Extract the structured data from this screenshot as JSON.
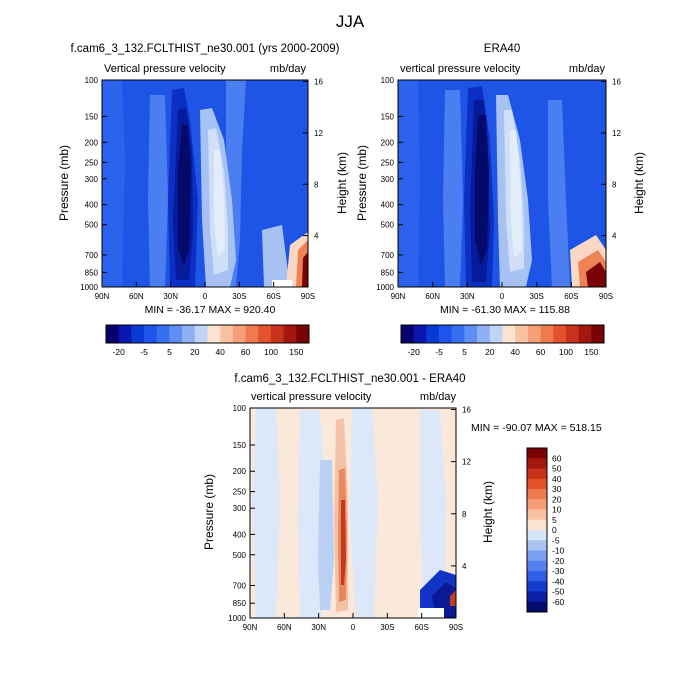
{
  "figure_title": "JJA",
  "chart_data": [
    {
      "type": "heatmap",
      "title": "f.cam6_3_132.FCLTHIST_ne30.001 (yrs 2000-2009)",
      "subtitle_left": "Vertical pressure velocity",
      "subtitle_right": "mb/day",
      "ylabel": "Pressure (mb)",
      "ylabel_right": "Height (km)",
      "x_ticks": [
        "90N",
        "60N",
        "30N",
        "0",
        "30S",
        "60S",
        "90S"
      ],
      "x_values": [
        90,
        60,
        30,
        0,
        -30,
        -60,
        -90
      ],
      "y_ticks": [
        "100",
        "150",
        "200",
        "250",
        "300",
        "400",
        "500",
        "700",
        "850",
        "1000"
      ],
      "y_values": [
        100,
        150,
        200,
        250,
        300,
        400,
        500,
        700,
        850,
        1000
      ],
      "y_right_ticks": [
        "16",
        "12",
        "8",
        "4"
      ],
      "y_right_values": [
        16,
        12,
        8,
        4
      ],
      "stats": "MIN = -36.17   MAX = 920.40",
      "min": -36.17,
      "max": 920.4
    },
    {
      "type": "heatmap",
      "title": "ERA40",
      "subtitle_left": "vertical pressure velocity",
      "subtitle_right": "mb/day",
      "ylabel": "Pressure (mb)",
      "ylabel_right": "Height (km)",
      "x_ticks": [
        "90N",
        "60N",
        "30N",
        "0",
        "30S",
        "60S",
        "90S"
      ],
      "x_values": [
        90,
        60,
        30,
        0,
        -30,
        -60,
        -90
      ],
      "y_ticks": [
        "100",
        "150",
        "200",
        "250",
        "300",
        "400",
        "500",
        "700",
        "850",
        "1000"
      ],
      "y_values": [
        100,
        150,
        200,
        250,
        300,
        400,
        500,
        700,
        850,
        1000
      ],
      "y_right_ticks": [
        "16",
        "12",
        "8",
        "4"
      ],
      "y_right_values": [
        16,
        12,
        8,
        4
      ],
      "stats": "MIN = -61.30   MAX = 115.88",
      "min": -61.3,
      "max": 115.88
    },
    {
      "type": "heatmap",
      "title": "f.cam6_3_132.FCLTHIST_ne30.001 - ERA40",
      "subtitle_left": "vertical pressure velocity",
      "subtitle_right": "mb/day",
      "ylabel": "Pressure (mb)",
      "ylabel_right": "Height (km)",
      "x_ticks": [
        "90N",
        "60N",
        "30N",
        "0",
        "30S",
        "60S",
        "90S"
      ],
      "x_values": [
        90,
        60,
        30,
        0,
        -30,
        -60,
        -90
      ],
      "y_ticks": [
        "100",
        "150",
        "200",
        "250",
        "300",
        "400",
        "500",
        "700",
        "850",
        "1000"
      ],
      "y_values": [
        100,
        150,
        200,
        250,
        300,
        400,
        500,
        700,
        850,
        1000
      ],
      "y_right_ticks": [
        "16",
        "12",
        "8",
        "4"
      ],
      "y_right_values": [
        16,
        12,
        8,
        4
      ],
      "stats": "MIN = -90.07   MAX = 518.15",
      "min": -90.07,
      "max": 518.15
    }
  ],
  "colorbar_top": {
    "labels": [
      "-20",
      "-5",
      "5",
      "20",
      "40",
      "60",
      "100",
      "150"
    ],
    "colors": [
      "#08006e",
      "#0b15b0",
      "#0a3ad6",
      "#1d55ec",
      "#3670f0",
      "#5f8ff2",
      "#8fb1f3",
      "#c1d4f7",
      "#fbe2d1",
      "#f8c2a2",
      "#f59e77",
      "#ef7a4e",
      "#e2532b",
      "#c8311a",
      "#a3170e",
      "#7a0405"
    ]
  },
  "colorbar_diff": {
    "labels": [
      "60",
      "50",
      "40",
      "30",
      "20",
      "10",
      "5",
      "0",
      "-5",
      "-10",
      "-20",
      "-30",
      "-40",
      "-50",
      "-60"
    ],
    "colors": [
      "#7a0405",
      "#a3170e",
      "#c8311a",
      "#e2532b",
      "#ef7a4e",
      "#f59e77",
      "#f8c2a2",
      "#fbe2d1",
      "#d6e4f7",
      "#a9c3f2",
      "#7b9ff0",
      "#5481ef",
      "#2f5fe6",
      "#133dca",
      "#0a20a4",
      "#060a6e"
    ]
  },
  "colors": {
    "field_top": [
      "#1f55e6",
      "#2d63ec",
      "#4b7ef0",
      "#0c2fc4",
      "#061a9c",
      "#030a6a",
      "#a6c1f2",
      "#cfdff8",
      "#e4eefb",
      "#fbd8c4",
      "#ee8355",
      "#c8301a",
      "#7a0405"
    ],
    "field_diff": [
      "#fae8da",
      "#dce8f9",
      "#b9cff4",
      "#f3c3a6",
      "#e98761",
      "#c33b1f",
      "#1134c6",
      "#0a1a95",
      "#7b9ff0"
    ]
  }
}
